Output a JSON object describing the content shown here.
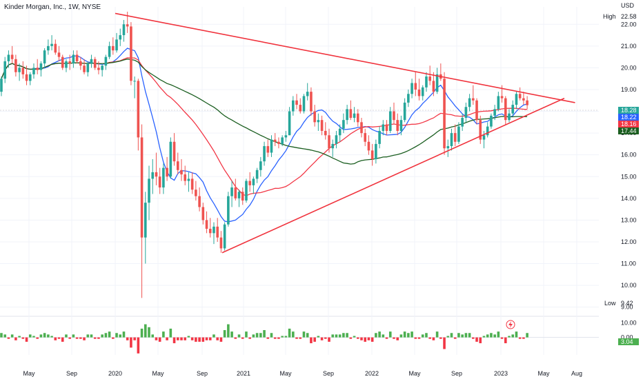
{
  "header": {
    "symbol_title": "Kinder Morgan, Inc., 1W, NYSE",
    "currency": "USD"
  },
  "colors": {
    "up": "#26a69a",
    "down": "#ef5350",
    "pattern": "#f0323c",
    "ma_fast": "#2962ff",
    "ma_mid": "#f23645",
    "ma_slow": "#1b5e20",
    "vol_up": "#4caf50",
    "vol_down": "#f23645",
    "text": "#131722"
  },
  "markers": {
    "high_label": "High",
    "high_value": "22.58",
    "low_label": "Low",
    "low_value": "9.42"
  },
  "price_badges": [
    {
      "value": "18.28",
      "color": "#26a69a"
    },
    {
      "value": "18.22",
      "color": "#2962ff"
    },
    {
      "value": "18.16",
      "color": "#f23645"
    },
    {
      "value": "17.44",
      "color": "#1b5e20"
    }
  ],
  "osc_badge": {
    "value": "3.04",
    "color": "#4caf50"
  },
  "lightning_icon": "lightning-icon",
  "chart_data": {
    "type": "candlestick",
    "price_axis": {
      "ticks": [
        "22.00",
        "21.00",
        "20.00",
        "19.00",
        "18.00",
        "17.00",
        "16.00",
        "15.00",
        "14.00",
        "13.00",
        "12.00",
        "11.00",
        "10.00",
        "9.00"
      ],
      "range": [
        8.8,
        22.8
      ]
    },
    "osc_axis": {
      "ticks": [
        "10.00",
        "0.00"
      ],
      "range": [
        -12,
        14
      ]
    },
    "time_axis": {
      "ticks": [
        "May",
        "Sep",
        "2020",
        "May",
        "Sep",
        "2021",
        "May",
        "Sep",
        "2022",
        "May",
        "Sep",
        "2023",
        "May",
        "Aug"
      ]
    },
    "pattern_lines": [
      {
        "from": [
          "2020-01",
          22.5
        ],
        "to": [
          "2023-08",
          18.4
        ]
      },
      {
        "from": [
          "2020-11",
          11.5
        ],
        "to": [
          "2023-07",
          18.6
        ]
      }
    ],
    "candles": [
      [
        18.9,
        19.6,
        18.7,
        19.5
      ],
      [
        19.5,
        20.5,
        19.3,
        20.3
      ],
      [
        20.3,
        20.8,
        20.0,
        20.6
      ],
      [
        20.6,
        21.0,
        20.2,
        20.4
      ],
      [
        20.4,
        20.6,
        19.6,
        19.8
      ],
      [
        19.8,
        20.2,
        19.4,
        20.0
      ],
      [
        20.0,
        20.3,
        19.5,
        19.7
      ],
      [
        19.7,
        20.1,
        19.2,
        19.4
      ],
      [
        19.4,
        19.8,
        19.2,
        19.7
      ],
      [
        19.7,
        20.2,
        19.5,
        20.0
      ],
      [
        20.0,
        20.4,
        19.7,
        19.9
      ],
      [
        19.9,
        20.3,
        19.6,
        20.2
      ],
      [
        20.2,
        20.9,
        20.0,
        20.8
      ],
      [
        20.8,
        21.3,
        20.6,
        21.0
      ],
      [
        21.0,
        21.5,
        20.8,
        21.1
      ],
      [
        21.1,
        21.3,
        20.6,
        20.7
      ],
      [
        20.7,
        21.0,
        20.3,
        20.5
      ],
      [
        20.5,
        20.6,
        19.9,
        20.0
      ],
      [
        20.0,
        20.4,
        19.8,
        20.3
      ],
      [
        20.3,
        20.6,
        19.9,
        20.2
      ],
      [
        20.2,
        20.8,
        20.0,
        20.6
      ],
      [
        20.6,
        20.8,
        20.2,
        20.3
      ],
      [
        20.3,
        20.5,
        19.9,
        20.1
      ],
      [
        20.1,
        20.4,
        19.7,
        19.8
      ],
      [
        19.8,
        20.3,
        19.6,
        20.2
      ],
      [
        20.2,
        20.6,
        20.0,
        20.4
      ],
      [
        20.4,
        20.5,
        19.9,
        20.0
      ],
      [
        20.0,
        20.3,
        19.7,
        19.9
      ],
      [
        19.9,
        20.2,
        19.6,
        20.1
      ],
      [
        20.1,
        20.6,
        19.9,
        20.5
      ],
      [
        20.5,
        21.2,
        20.4,
        21.0
      ],
      [
        21.0,
        21.4,
        20.6,
        20.8
      ],
      [
        20.8,
        21.6,
        20.7,
        21.3
      ],
      [
        21.3,
        21.8,
        21.0,
        21.5
      ],
      [
        21.5,
        22.2,
        21.2,
        22.0
      ],
      [
        22.0,
        22.58,
        21.6,
        21.9
      ],
      [
        21.9,
        22.1,
        19.2,
        19.4
      ],
      [
        19.4,
        19.6,
        18.6,
        19.4
      ],
      [
        19.4,
        19.5,
        16.2,
        16.8
      ],
      [
        16.8,
        17.4,
        9.42,
        12.2
      ],
      [
        12.2,
        14.3,
        11.0,
        13.8
      ],
      [
        13.8,
        15.5,
        13.0,
        14.9
      ],
      [
        14.9,
        15.8,
        14.2,
        15.2
      ],
      [
        15.2,
        16.1,
        14.6,
        15.0
      ],
      [
        15.0,
        15.4,
        14.2,
        14.5
      ],
      [
        14.5,
        15.6,
        14.2,
        15.4
      ],
      [
        15.4,
        15.9,
        14.8,
        15.0
      ],
      [
        15.0,
        16.8,
        14.9,
        16.6
      ],
      [
        16.6,
        17.0,
        15.5,
        15.7
      ],
      [
        15.7,
        16.1,
        15.1,
        15.3
      ],
      [
        15.3,
        15.8,
        14.8,
        15.1
      ],
      [
        15.1,
        15.5,
        14.6,
        14.8
      ],
      [
        14.8,
        15.2,
        14.3,
        14.9
      ],
      [
        14.9,
        15.2,
        14.2,
        14.4
      ],
      [
        14.4,
        14.8,
        13.9,
        14.1
      ],
      [
        14.1,
        14.5,
        13.4,
        13.6
      ],
      [
        13.6,
        13.8,
        12.8,
        13.0
      ],
      [
        13.0,
        13.4,
        12.4,
        12.6
      ],
      [
        12.6,
        13.1,
        12.2,
        12.4
      ],
      [
        12.4,
        12.9,
        11.9,
        12.7
      ],
      [
        12.7,
        13.1,
        12.0,
        12.2
      ],
      [
        12.2,
        12.5,
        11.5,
        11.7
      ],
      [
        11.7,
        12.9,
        11.6,
        12.8
      ],
      [
        12.8,
        14.3,
        12.7,
        14.1
      ],
      [
        14.1,
        14.8,
        13.6,
        14.5
      ],
      [
        14.5,
        14.9,
        13.9,
        14.0
      ],
      [
        14.0,
        14.4,
        13.6,
        14.3
      ],
      [
        14.3,
        14.5,
        13.7,
        13.9
      ],
      [
        13.9,
        14.9,
        13.8,
        14.8
      ],
      [
        14.8,
        15.2,
        14.3,
        14.6
      ],
      [
        14.6,
        15.0,
        14.2,
        14.9
      ],
      [
        14.9,
        15.4,
        14.7,
        15.3
      ],
      [
        15.3,
        15.9,
        15.0,
        15.7
      ],
      [
        15.7,
        16.6,
        15.5,
        16.4
      ],
      [
        16.4,
        16.7,
        15.9,
        16.1
      ],
      [
        16.1,
        16.9,
        15.9,
        16.7
      ],
      [
        16.7,
        17.0,
        16.4,
        16.6
      ],
      [
        16.6,
        16.8,
        16.3,
        16.5
      ],
      [
        16.5,
        16.9,
        16.4,
        16.8
      ],
      [
        16.8,
        17.1,
        16.6,
        16.9
      ],
      [
        16.9,
        18.2,
        16.9,
        18.0
      ],
      [
        18.0,
        18.7,
        17.8,
        18.5
      ],
      [
        18.5,
        18.8,
        18.1,
        18.3
      ],
      [
        18.3,
        18.6,
        17.9,
        18.0
      ],
      [
        18.0,
        18.8,
        17.9,
        18.7
      ],
      [
        18.7,
        19.3,
        18.5,
        18.9
      ],
      [
        18.9,
        19.1,
        17.8,
        18.0
      ],
      [
        18.0,
        18.3,
        17.3,
        17.5
      ],
      [
        17.5,
        17.9,
        17.1,
        17.6
      ],
      [
        17.6,
        17.8,
        16.9,
        17.1
      ],
      [
        17.1,
        17.5,
        16.7,
        16.9
      ],
      [
        16.9,
        17.2,
        16.1,
        16.3
      ],
      [
        16.3,
        16.7,
        15.9,
        16.5
      ],
      [
        16.5,
        17.1,
        16.3,
        16.9
      ],
      [
        16.9,
        17.4,
        16.6,
        17.2
      ],
      [
        17.2,
        17.9,
        17.0,
        17.6
      ],
      [
        17.6,
        18.3,
        17.4,
        18.1
      ],
      [
        18.1,
        18.5,
        17.6,
        17.7
      ],
      [
        17.7,
        18.2,
        17.5,
        17.9
      ],
      [
        17.9,
        18.1,
        17.3,
        17.5
      ],
      [
        17.5,
        17.7,
        16.8,
        17.0
      ],
      [
        17.0,
        17.2,
        16.4,
        16.6
      ],
      [
        16.6,
        16.9,
        16.0,
        16.2
      ],
      [
        16.2,
        16.5,
        15.5,
        15.8
      ],
      [
        15.8,
        16.7,
        15.6,
        16.5
      ],
      [
        16.5,
        17.3,
        16.3,
        17.1
      ],
      [
        17.1,
        17.6,
        16.9,
        17.4
      ],
      [
        17.4,
        17.6,
        16.9,
        17.1
      ],
      [
        17.1,
        18.2,
        17.0,
        18.0
      ],
      [
        18.0,
        18.4,
        17.4,
        17.6
      ],
      [
        17.6,
        17.9,
        16.9,
        17.1
      ],
      [
        17.1,
        17.8,
        16.9,
        17.6
      ],
      [
        17.6,
        18.6,
        17.5,
        18.4
      ],
      [
        18.4,
        19.0,
        18.2,
        18.8
      ],
      [
        18.8,
        19.5,
        18.6,
        19.3
      ],
      [
        19.3,
        19.8,
        18.7,
        19.0
      ],
      [
        19.0,
        19.5,
        18.5,
        18.7
      ],
      [
        18.7,
        19.2,
        18.5,
        19.1
      ],
      [
        19.1,
        19.8,
        18.9,
        19.6
      ],
      [
        19.6,
        20.1,
        19.2,
        19.4
      ],
      [
        19.4,
        19.8,
        18.7,
        18.9
      ],
      [
        18.9,
        20.0,
        18.8,
        19.7
      ],
      [
        19.7,
        20.2,
        19.4,
        19.5
      ],
      [
        19.5,
        19.8,
        16.0,
        16.3
      ],
      [
        16.3,
        16.7,
        15.9,
        16.4
      ],
      [
        16.4,
        17.2,
        16.2,
        17.0
      ],
      [
        17.0,
        17.4,
        16.4,
        16.6
      ],
      [
        16.6,
        17.5,
        16.5,
        17.3
      ],
      [
        17.3,
        17.9,
        17.1,
        17.7
      ],
      [
        17.7,
        18.4,
        17.5,
        18.2
      ],
      [
        18.2,
        18.8,
        18.0,
        18.6
      ],
      [
        18.6,
        19.2,
        18.3,
        18.5
      ],
      [
        18.5,
        18.6,
        17.4,
        17.6
      ],
      [
        17.6,
        17.8,
        16.5,
        16.7
      ],
      [
        16.7,
        17.1,
        16.3,
        16.9
      ],
      [
        16.9,
        17.5,
        16.8,
        17.3
      ],
      [
        17.3,
        17.9,
        17.2,
        17.8
      ],
      [
        17.8,
        18.3,
        17.6,
        18.1
      ],
      [
        18.1,
        18.9,
        18.0,
        18.7
      ],
      [
        18.7,
        19.2,
        18.4,
        18.6
      ],
      [
        18.6,
        18.7,
        17.4,
        17.6
      ],
      [
        17.6,
        18.1,
        17.5,
        17.9
      ],
      [
        17.9,
        18.5,
        17.8,
        18.3
      ],
      [
        18.3,
        18.9,
        18.1,
        18.8
      ],
      [
        18.8,
        19.1,
        18.5,
        18.6
      ],
      [
        18.6,
        18.9,
        18.3,
        18.5
      ],
      [
        18.5,
        18.7,
        18.1,
        18.28
      ]
    ],
    "volume_osc": [
      3,
      2,
      -1,
      2,
      -2,
      1,
      -1,
      -3,
      2,
      1,
      -1,
      2,
      3,
      2,
      1,
      -2,
      -1,
      -3,
      2,
      -1,
      2,
      -1,
      -1,
      -2,
      2,
      2,
      -1,
      -1,
      2,
      3,
      4,
      -1,
      3,
      2,
      4,
      -2,
      -7,
      -2,
      -11,
      6,
      9,
      7,
      2,
      -2,
      -3,
      4,
      -2,
      6,
      -4,
      -2,
      -2,
      -2,
      1,
      -2,
      -3,
      -3,
      -3,
      -2,
      -2,
      2,
      -2,
      -3,
      5,
      9,
      4,
      -1,
      2,
      -1,
      4,
      -1,
      2,
      3,
      3,
      5,
      -1,
      3,
      -1,
      -1,
      1,
      1,
      6,
      4,
      -1,
      -1,
      4,
      3,
      -4,
      -3,
      1,
      -2,
      -1,
      -3,
      2,
      2,
      2,
      3,
      3,
      -1,
      1,
      -1,
      -2,
      -3,
      -2,
      -3,
      3,
      4,
      2,
      -1,
      4,
      -1,
      -2,
      2,
      4,
      3,
      4,
      -1,
      -1,
      2,
      3,
      -1,
      -2,
      4,
      -1,
      -8,
      1,
      3,
      -1,
      3,
      2,
      3,
      3,
      -1,
      -3,
      -4,
      1,
      2,
      3,
      2,
      4,
      -1,
      -4,
      1,
      2,
      4,
      -1,
      -1,
      3
    ]
  }
}
